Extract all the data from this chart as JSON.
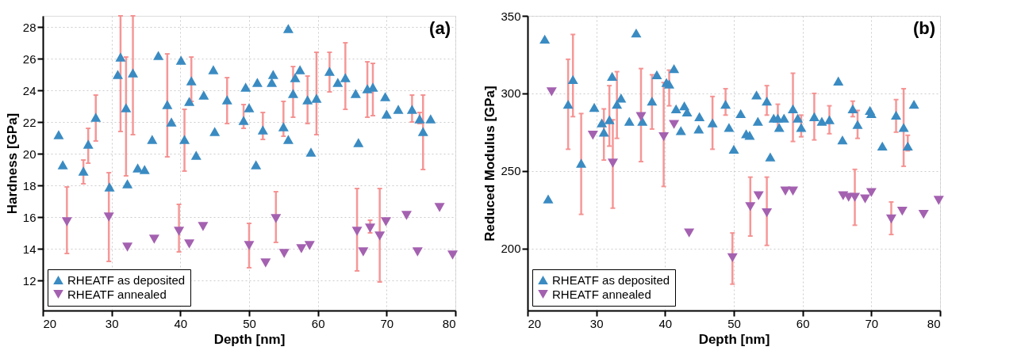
{
  "chart_data": [
    {
      "type": "scatter",
      "xlabel": "Depth [nm]",
      "ylabel": "Hardness [GPa]",
      "annotations": [
        "(a)"
      ],
      "xlim": [
        20,
        80
      ],
      "xticks": [
        20,
        30,
        40,
        50,
        60,
        70,
        80
      ],
      "ylim": [
        10.1,
        28.7
      ],
      "yticks": [
        12,
        14,
        16,
        18,
        20,
        22,
        24,
        26,
        28
      ],
      "grid": true,
      "legend": "bottom left",
      "series": [
        {
          "name": "RHEATF as deposited",
          "color": "#3a8bc2",
          "marker": "triangle",
          "x": [
            22.3,
            22.9,
            25.9,
            26.6,
            27.7,
            29.7,
            30.9,
            31.3,
            32.1,
            32.3,
            33.1,
            33.8,
            34.8,
            35.9,
            36.8,
            38.1,
            38.7,
            40.1,
            40.6,
            41.3,
            41.6,
            42.3,
            43.4,
            44.8,
            45.0,
            46.8,
            49.2,
            49.5,
            50.0,
            51.0,
            51.2,
            52.0,
            53.3,
            53.5,
            55.0,
            55.7,
            55.7,
            56.4,
            56.7,
            57.4,
            58.5,
            59.0,
            59.8,
            61.7,
            62.9,
            64.0,
            65.5,
            65.9,
            67.2,
            68.0,
            69.8,
            70.0,
            71.7,
            73.7,
            74.8,
            75.3,
            76.4
          ],
          "values": [
            21.2,
            19.3,
            18.9,
            20.6,
            22.3,
            17.9,
            25.0,
            26.1,
            22.9,
            18.1,
            25.1,
            19.1,
            19.0,
            20.9,
            26.2,
            23.1,
            22.0,
            25.9,
            20.9,
            23.3,
            24.6,
            19.9,
            23.7,
            25.3,
            21.4,
            23.4,
            22.1,
            24.2,
            22.9,
            19.3,
            24.5,
            21.5,
            24.5,
            25.0,
            21.7,
            27.9,
            20.9,
            23.8,
            24.8,
            25.3,
            23.4,
            20.1,
            23.5,
            25.2,
            24.5,
            24.8,
            23.8,
            20.7,
            24.1,
            24.2,
            23.6,
            22.5,
            22.8,
            22.8,
            22.2,
            21.4,
            22.2
          ],
          "errors": [
            null,
            null,
            [
              18.1,
              19.6
            ],
            [
              19.4,
              21.6
            ],
            [
              20.8,
              23.7
            ],
            null,
            null,
            [
              21.4,
              28.7
            ],
            [
              18.6,
              26.1
            ],
            null,
            [
              21.2,
              28.7
            ],
            null,
            null,
            null,
            null,
            [
              19.8,
              26.3
            ],
            null,
            null,
            [
              18.9,
              22.8
            ],
            null,
            [
              23.3,
              26.1
            ],
            null,
            null,
            null,
            null,
            [
              21.9,
              24.8
            ],
            [
              21.6,
              23.1
            ],
            null,
            null,
            null,
            null,
            [
              20.9,
              22.6
            ],
            null,
            null,
            [
              21.1,
              23.3
            ],
            null,
            null,
            [
              22.3,
              25.5
            ],
            null,
            null,
            [
              21.9,
              24.9
            ],
            null,
            [
              21.2,
              26.4
            ],
            [
              23.9,
              26.4
            ],
            null,
            [
              22.8,
              27.0
            ],
            null,
            null,
            [
              22.3,
              25.8
            ],
            [
              22.4,
              25.7
            ],
            null,
            null,
            null,
            [
              22.0,
              23.7
            ],
            [
              21.9,
              22.6
            ],
            [
              19.0,
              23.7
            ],
            null
          ]
        },
        {
          "name": "RHEATF annealed",
          "color": "#a461b0",
          "marker": "triangle-down",
          "x": [
            23.5,
            29.6,
            32.3,
            36.2,
            39.8,
            41.3,
            43.3,
            50.0,
            52.4,
            53.9,
            55.1,
            57.6,
            58.8,
            65.7,
            66.6,
            67.6,
            69.0,
            69.9,
            72.9,
            74.5,
            77.7,
            79.6
          ],
          "values": [
            15.7,
            16.0,
            14.1,
            14.6,
            15.1,
            14.3,
            15.4,
            14.2,
            13.1,
            15.9,
            13.7,
            14.0,
            14.2,
            15.1,
            13.8,
            15.3,
            14.8,
            15.7,
            16.1,
            13.8,
            16.6,
            13.6
          ],
          "errors": [
            [
              13.7,
              17.9
            ],
            [
              13.2,
              18.8
            ],
            null,
            null,
            [
              13.8,
              16.8
            ],
            null,
            null,
            [
              12.8,
              15.6
            ],
            null,
            [
              14.4,
              17.6
            ],
            null,
            null,
            null,
            [
              12.6,
              17.8
            ],
            null,
            [
              15.0,
              15.8
            ],
            [
              11.9,
              17.8
            ],
            null,
            null,
            null,
            null,
            null
          ]
        }
      ]
    },
    {
      "type": "scatter",
      "xlabel": "Depth [nm]",
      "ylabel": "Reduced Modulus [GPa]",
      "annotations": [
        "(b)"
      ],
      "xlim": [
        20,
        80
      ],
      "xticks": [
        20,
        30,
        40,
        50,
        60,
        70,
        80
      ],
      "ylim": [
        160,
        350
      ],
      "yticks": [
        200,
        250,
        300,
        350
      ],
      "grid": true,
      "legend": "bottom left",
      "series": [
        {
          "name": "RHEATF as deposited",
          "color": "#3a8bc2",
          "marker": "triangle",
          "x": [
            22.5,
            23.0,
            25.9,
            26.6,
            27.8,
            29.7,
            30.8,
            31.1,
            31.9,
            32.3,
            33.0,
            33.6,
            34.8,
            35.8,
            36.7,
            38.1,
            38.8,
            40.2,
            40.6,
            41.3,
            41.6,
            42.3,
            42.8,
            43.2,
            44.9,
            45.0,
            46.9,
            48.8,
            49.3,
            50.0,
            51.0,
            51.8,
            52.3,
            53.3,
            53.5,
            54.8,
            55.3,
            55.8,
            56.4,
            56.6,
            57.3,
            58.6,
            59.3,
            59.8,
            61.7,
            62.8,
            63.9,
            65.2,
            65.8,
            67.3,
            68.0,
            69.8,
            70.0,
            71.6,
            73.6,
            74.7,
            75.3,
            76.2
          ],
          "values": [
            335,
            232,
            293,
            309,
            255,
            291,
            281,
            275,
            283,
            311,
            293,
            297,
            282,
            339,
            282,
            295,
            312,
            307,
            306,
            316,
            290,
            276,
            292,
            288,
            277,
            285,
            281,
            293,
            278,
            264,
            287,
            274,
            273,
            299,
            282,
            295,
            259,
            284,
            284,
            278,
            284,
            290,
            284,
            278,
            285,
            282,
            283,
            308,
            270,
            290,
            280,
            289,
            287,
            266,
            286,
            278,
            266,
            293
          ],
          "errors": [
            null,
            null,
            [
              264,
              322
            ],
            [
              285,
              338
            ],
            [
              222,
              287
            ],
            null,
            null,
            [
              257,
              290
            ],
            [
              266,
              305
            ],
            null,
            [
              271,
              314
            ],
            null,
            null,
            null,
            null,
            [
              277,
              312
            ],
            null,
            null,
            [
              292,
              315
            ],
            null,
            null,
            null,
            null,
            null,
            null,
            null,
            [
              264,
              298
            ],
            [
              286,
              303
            ],
            null,
            null,
            null,
            null,
            null,
            null,
            null,
            [
              286,
              305
            ],
            null,
            null,
            [
              276,
              293
            ],
            null,
            null,
            [
              269,
              313
            ],
            null,
            [
              272,
              286
            ],
            [
              270,
              300
            ],
            null,
            [
              274,
              292
            ],
            null,
            null,
            [
              285,
              295
            ],
            [
              271,
              289
            ],
            null,
            null,
            null,
            [
              275,
              296
            ],
            [
              253,
              303
            ],
            [
              263,
              273
            ],
            null
          ]
        },
        {
          "name": "RHEATF annealed",
          "color": "#a461b0",
          "marker": "triangle-down",
          "x": [
            23.5,
            29.5,
            32.4,
            36.5,
            39.8,
            41.3,
            43.5,
            49.8,
            52.4,
            53.6,
            54.8,
            57.5,
            58.6,
            65.9,
            66.7,
            67.6,
            69.1,
            70.0,
            72.9,
            74.5,
            77.6,
            79.8
          ],
          "values": [
            301,
            273,
            255,
            285,
            272,
            280,
            210,
            194,
            227,
            234,
            223,
            237,
            237,
            234,
            233,
            233,
            232,
            236,
            219,
            224,
            222,
            231
          ],
          "errors": [
            null,
            null,
            [
              226,
              283
            ],
            [
              256,
              316
            ],
            [
              240,
              307
            ],
            null,
            null,
            [
              177,
              210
            ],
            [
              208,
              246
            ],
            null,
            [
              202,
              246
            ],
            null,
            null,
            null,
            null,
            [
              215,
              251
            ],
            null,
            null,
            [
              209,
              230
            ],
            null,
            null,
            null
          ]
        }
      ]
    }
  ]
}
